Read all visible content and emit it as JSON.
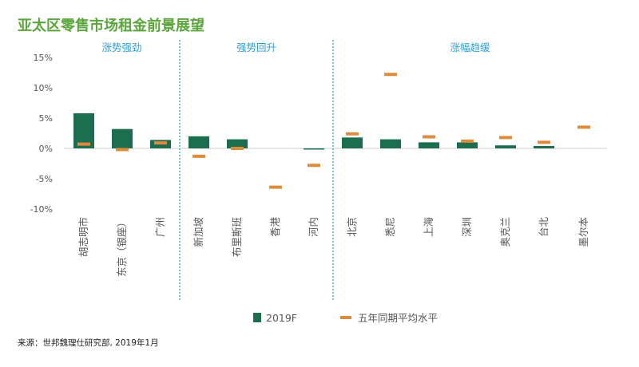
{
  "header": {
    "title": "亚太区零售市场租金前景展望"
  },
  "source": "来源：世邦魏理仕研究部, 2019年1月",
  "colors": {
    "title": "#5aa63c",
    "group_label": "#2a9fd6",
    "divider": "#2aa6a8",
    "bar": "#1b6e4e",
    "avg": "#e08a3c",
    "axis_text": "#555555",
    "grid": "#cccccc",
    "source_text": "#222222"
  },
  "chart_data": {
    "type": "bar",
    "title": "亚太区零售市场租金前景展望",
    "ylim": [
      -10,
      15
    ],
    "yticks": [
      -10,
      -5,
      0,
      5,
      10,
      15
    ],
    "ytick_labels": [
      "-10%",
      "-5%",
      "0%",
      "5%",
      "10%",
      "15%"
    ],
    "categories": [
      "胡志明市",
      "东京（银座）",
      "广州",
      "新加坡",
      "布里斯班",
      "香港",
      "河内",
      "北京",
      "悉尼",
      "上海",
      "深圳",
      "奥克兰",
      "台北",
      "墨尔本"
    ],
    "groups": [
      {
        "label": "涨势强劲",
        "start": 0,
        "end": 2
      },
      {
        "label": "强势回升",
        "start": 3,
        "end": 6
      },
      {
        "label": "涨幅趋缓",
        "start": 7,
        "end": 13
      }
    ],
    "series": [
      {
        "name": "2019F",
        "kind": "bar",
        "values": [
          5.8,
          3.2,
          1.4,
          2.0,
          1.5,
          0.0,
          -0.2,
          1.8,
          1.5,
          1.0,
          1.0,
          0.5,
          0.4,
          0.0
        ]
      },
      {
        "name": "五年同期平均水平",
        "kind": "marker",
        "values": [
          0.7,
          -0.2,
          0.9,
          -1.3,
          0.0,
          -6.4,
          -2.8,
          2.4,
          12.2,
          1.9,
          1.2,
          1.8,
          1.0,
          3.5
        ]
      }
    ],
    "legend_position": "bottom-center",
    "grid": false
  }
}
